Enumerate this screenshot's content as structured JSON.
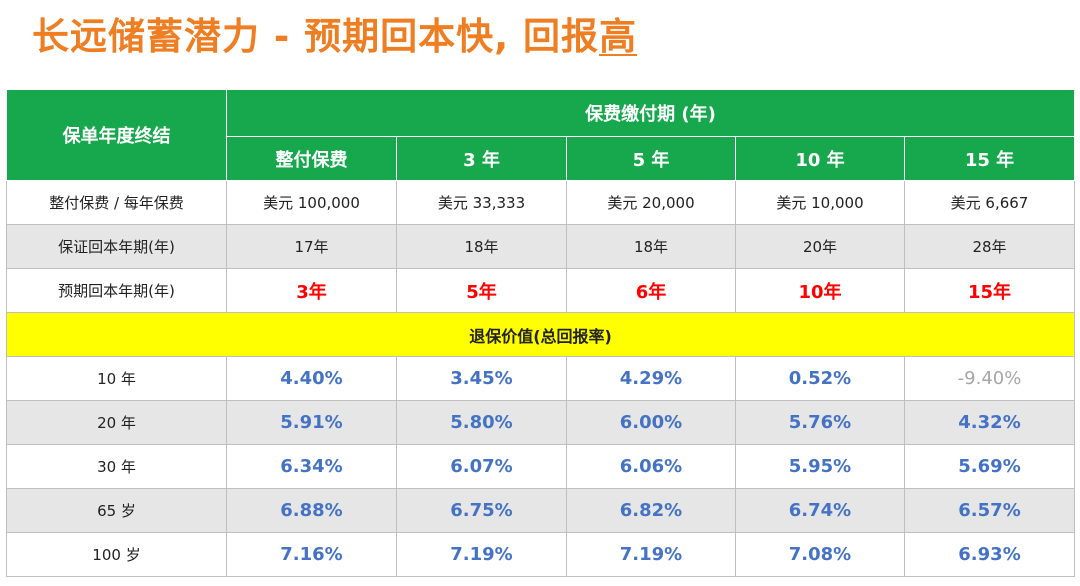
{
  "title": {
    "main": "长远储蓄潜力 - 预期回本快, 回报",
    "underlined": "高"
  },
  "table": {
    "header": {
      "corner": "保单年度终结",
      "group": "保费缴付期 (年)",
      "periods": [
        "整付保费",
        "3 年",
        "5 年",
        "10 年",
        "15 年"
      ]
    },
    "premium_row": {
      "label": "整付保费 / 每年保费",
      "values": [
        "美元 100,000",
        "美元 33,333",
        "美元 20,000",
        "美元 10,000",
        "美元 6,667"
      ]
    },
    "guaranteed_row": {
      "label": "保证回本年期(年)",
      "values": [
        "17年",
        "18年",
        "18年",
        "20年",
        "28年"
      ]
    },
    "expected_row": {
      "label": "预期回本年期(年)",
      "values": [
        "3年",
        "5年",
        "6年",
        "10年",
        "15年"
      ]
    },
    "section_label": "退保价值(总回报率)",
    "returns": [
      {
        "label": "10 年",
        "values": [
          "4.40%",
          "3.45%",
          "4.29%",
          "0.52%",
          "-9.40%"
        ]
      },
      {
        "label": "20 年",
        "values": [
          "5.91%",
          "5.80%",
          "6.00%",
          "5.76%",
          "4.32%"
        ]
      },
      {
        "label": "30 年",
        "values": [
          "6.34%",
          "6.07%",
          "6.06%",
          "5.95%",
          "5.69%"
        ]
      },
      {
        "label": "65 岁",
        "values": [
          "6.88%",
          "6.75%",
          "6.82%",
          "6.74%",
          "6.57%"
        ]
      },
      {
        "label": "100 岁",
        "values": [
          "7.16%",
          "7.19%",
          "7.19%",
          "7.08%",
          "6.93%"
        ]
      }
    ]
  },
  "colors": {
    "title": "#ef7d22",
    "header_bg": "#17a84d",
    "highlight": "#ffff00",
    "expected_text": "#ff0000",
    "return_text": "#4472c4",
    "negative_text": "#a6a6a6",
    "gray_row": "#e6e6e6"
  }
}
